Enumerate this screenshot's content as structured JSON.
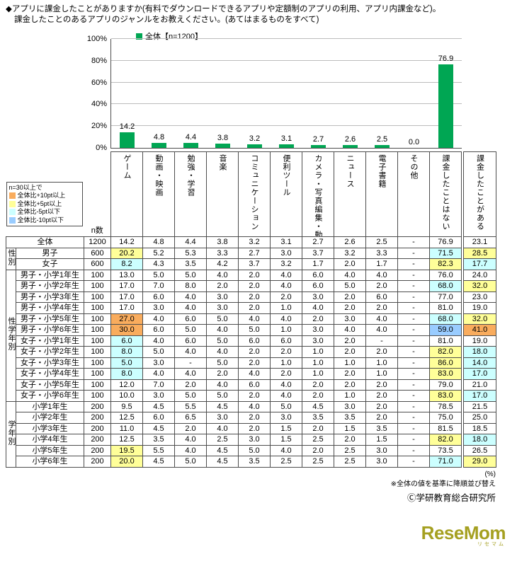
{
  "title": {
    "line1": "◆アプリに課金したことがありますか(有料でダウンロードできるアプリや定額制のアプリの利用、アプリ内課金など)。",
    "line2": "課金したことのあるアプリのジャンルをお教えください。(あてはまるものをすべて)"
  },
  "chart_data": {
    "type": "bar",
    "legend": "全体【n=1200】",
    "categories": [
      "ゲーム",
      "動画・映画",
      "勉強・学習",
      "音楽",
      "コミュニケーション",
      "便利ツール",
      "カメラ・写真編集・動画編集",
      "ニュース",
      "電子書籍",
      "その他",
      "課金したことはない"
    ],
    "values": [
      14.2,
      4.8,
      4.4,
      3.8,
      3.2,
      3.1,
      2.7,
      2.6,
      2.5,
      0.0,
      76.9
    ],
    "value_labels": [
      "14.2",
      "4.8",
      "4.4",
      "3.8",
      "3.2",
      "3.1",
      "2.7",
      "2.6",
      "2.5",
      "0.0",
      "76.9"
    ],
    "ylim": [
      0,
      100
    ],
    "yticks": [
      0,
      20,
      40,
      60,
      80,
      100
    ],
    "grid": true,
    "legend_position": "top-left",
    "bar_color": "#00A653"
  },
  "highlight_legend": {
    "title": "n=30以上で",
    "items": [
      {
        "label": "全体比+10pt以上",
        "code": "o",
        "color": "#F9AC5D"
      },
      {
        "label": "全体比+5pt以上",
        "code": "y",
        "color": "#FFFF99"
      },
      {
        "label": "全体比-5pt以下",
        "code": "c",
        "color": "#CCFFFF"
      },
      {
        "label": "全体比-10pt以下",
        "code": "b",
        "color": "#99CCFF"
      }
    ]
  },
  "table": {
    "n_header": "n数",
    "extra_column_header": "課金したことがある",
    "unit_note": "(%)",
    "groups": [
      {
        "label": "",
        "rows": [
          {
            "label": "全体",
            "n": "1200",
            "cells": [
              "14.2",
              "4.8",
              "4.4",
              "3.8",
              "3.2",
              "3.1",
              "2.7",
              "2.6",
              "2.5",
              "-",
              "76.9"
            ],
            "extra": "23.1",
            "hl": {}
          }
        ]
      },
      {
        "label": "性別",
        "rows": [
          {
            "label": "男子",
            "n": "600",
            "cells": [
              "20.2",
              "5.2",
              "5.3",
              "3.3",
              "2.7",
              "3.0",
              "3.7",
              "3.2",
              "3.3",
              "-",
              "71.5"
            ],
            "extra": "28.5",
            "hl": {
              "0": "y",
              "10": "c",
              "e": "y"
            }
          },
          {
            "label": "女子",
            "n": "600",
            "cells": [
              "8.2",
              "4.3",
              "3.5",
              "4.2",
              "3.7",
              "3.2",
              "1.7",
              "2.0",
              "1.7",
              "-",
              "82.3"
            ],
            "extra": "17.7",
            "hl": {
              "0": "c",
              "10": "y",
              "e": "c"
            }
          }
        ]
      },
      {
        "label": "性学年別",
        "rows": [
          {
            "label": "男子・小学1年生",
            "n": "100",
            "cells": [
              "13.0",
              "5.0",
              "5.0",
              "4.0",
              "2.0",
              "4.0",
              "6.0",
              "4.0",
              "4.0",
              "-",
              "76.0"
            ],
            "extra": "24.0",
            "hl": {}
          },
          {
            "label": "男子・小学2年生",
            "n": "100",
            "cells": [
              "17.0",
              "7.0",
              "8.0",
              "2.0",
              "2.0",
              "4.0",
              "6.0",
              "5.0",
              "2.0",
              "-",
              "68.0"
            ],
            "extra": "32.0",
            "hl": {
              "10": "c",
              "e": "y"
            }
          },
          {
            "label": "男子・小学3年生",
            "n": "100",
            "cells": [
              "17.0",
              "6.0",
              "4.0",
              "3.0",
              "2.0",
              "2.0",
              "3.0",
              "2.0",
              "6.0",
              "-",
              "77.0"
            ],
            "extra": "23.0",
            "hl": {}
          },
          {
            "label": "男子・小学4年生",
            "n": "100",
            "cells": [
              "17.0",
              "3.0",
              "4.0",
              "3.0",
              "2.0",
              "1.0",
              "4.0",
              "2.0",
              "2.0",
              "-",
              "81.0"
            ],
            "extra": "19.0",
            "hl": {}
          },
          {
            "label": "男子・小学5年生",
            "n": "100",
            "cells": [
              "27.0",
              "4.0",
              "6.0",
              "5.0",
              "4.0",
              "4.0",
              "2.0",
              "3.0",
              "4.0",
              "-",
              "68.0"
            ],
            "extra": "32.0",
            "hl": {
              "0": "o",
              "10": "c",
              "e": "y"
            }
          },
          {
            "label": "男子・小学6年生",
            "n": "100",
            "cells": [
              "30.0",
              "6.0",
              "5.0",
              "4.0",
              "5.0",
              "1.0",
              "3.0",
              "4.0",
              "4.0",
              "-",
              "59.0"
            ],
            "extra": "41.0",
            "hl": {
              "0": "o",
              "10": "b",
              "e": "o"
            }
          },
          {
            "label": "女子・小学1年生",
            "n": "100",
            "cells": [
              "6.0",
              "4.0",
              "6.0",
              "5.0",
              "6.0",
              "6.0",
              "3.0",
              "2.0",
              "-",
              "-",
              "81.0"
            ],
            "extra": "19.0",
            "hl": {
              "0": "c"
            }
          },
          {
            "label": "女子・小学2年生",
            "n": "100",
            "cells": [
              "8.0",
              "5.0",
              "4.0",
              "4.0",
              "2.0",
              "2.0",
              "1.0",
              "2.0",
              "2.0",
              "-",
              "82.0"
            ],
            "extra": "18.0",
            "hl": {
              "0": "c",
              "10": "y",
              "e": "c"
            }
          },
          {
            "label": "女子・小学3年生",
            "n": "100",
            "cells": [
              "5.0",
              "3.0",
              "-",
              "5.0",
              "2.0",
              "1.0",
              "1.0",
              "1.0",
              "1.0",
              "-",
              "86.0"
            ],
            "extra": "14.0",
            "hl": {
              "0": "c",
              "10": "y",
              "e": "c"
            }
          },
          {
            "label": "女子・小学4年生",
            "n": "100",
            "cells": [
              "8.0",
              "4.0",
              "4.0",
              "2.0",
              "4.0",
              "2.0",
              "1.0",
              "2.0",
              "1.0",
              "-",
              "83.0"
            ],
            "extra": "17.0",
            "hl": {
              "0": "c",
              "10": "y",
              "e": "c"
            }
          },
          {
            "label": "女子・小学5年生",
            "n": "100",
            "cells": [
              "12.0",
              "7.0",
              "2.0",
              "4.0",
              "6.0",
              "4.0",
              "2.0",
              "2.0",
              "2.0",
              "-",
              "79.0"
            ],
            "extra": "21.0",
            "hl": {}
          },
          {
            "label": "女子・小学6年生",
            "n": "100",
            "cells": [
              "10.0",
              "3.0",
              "5.0",
              "5.0",
              "2.0",
              "4.0",
              "2.0",
              "1.0",
              "2.0",
              "-",
              "83.0"
            ],
            "extra": "17.0",
            "hl": {
              "10": "y",
              "e": "c"
            }
          }
        ]
      },
      {
        "label": "学年別",
        "rows": [
          {
            "label": "小学1年生",
            "n": "200",
            "cells": [
              "9.5",
              "4.5",
              "5.5",
              "4.5",
              "4.0",
              "5.0",
              "4.5",
              "3.0",
              "2.0",
              "-",
              "78.5"
            ],
            "extra": "21.5",
            "hl": {}
          },
          {
            "label": "小学2年生",
            "n": "200",
            "cells": [
              "12.5",
              "6.0",
              "6.5",
              "3.0",
              "2.0",
              "3.0",
              "3.5",
              "3.5",
              "2.0",
              "-",
              "75.0"
            ],
            "extra": "25.0",
            "hl": {}
          },
          {
            "label": "小学3年生",
            "n": "200",
            "cells": [
              "11.0",
              "4.5",
              "2.0",
              "4.0",
              "2.0",
              "1.5",
              "2.0",
              "1.5",
              "3.5",
              "-",
              "81.5"
            ],
            "extra": "18.5",
            "hl": {}
          },
          {
            "label": "小学4年生",
            "n": "200",
            "cells": [
              "12.5",
              "3.5",
              "4.0",
              "2.5",
              "3.0",
              "1.5",
              "2.5",
              "2.0",
              "1.5",
              "-",
              "82.0"
            ],
            "extra": "18.0",
            "hl": {
              "10": "y",
              "e": "c"
            }
          },
          {
            "label": "小学5年生",
            "n": "200",
            "cells": [
              "19.5",
              "5.5",
              "4.0",
              "4.5",
              "5.0",
              "4.0",
              "2.0",
              "2.5",
              "3.0",
              "-",
              "73.5"
            ],
            "extra": "26.5",
            "hl": {
              "0": "y"
            }
          },
          {
            "label": "小学6年生",
            "n": "200",
            "cells": [
              "20.0",
              "4.5",
              "5.0",
              "4.5",
              "3.5",
              "2.5",
              "2.5",
              "2.5",
              "3.0",
              "-",
              "71.0"
            ],
            "extra": "29.0",
            "hl": {
              "0": "y",
              "10": "c",
              "e": "y"
            }
          }
        ]
      }
    ]
  },
  "footnotes": {
    "unit": "(%)",
    "sort_note": "※全体の値を基準に降順並び替え",
    "copyright": "Ⓒ学研教育総合研究所"
  },
  "logo": {
    "text": "ReseMom",
    "sub": "リセマム",
    "color": "#A5A021"
  }
}
